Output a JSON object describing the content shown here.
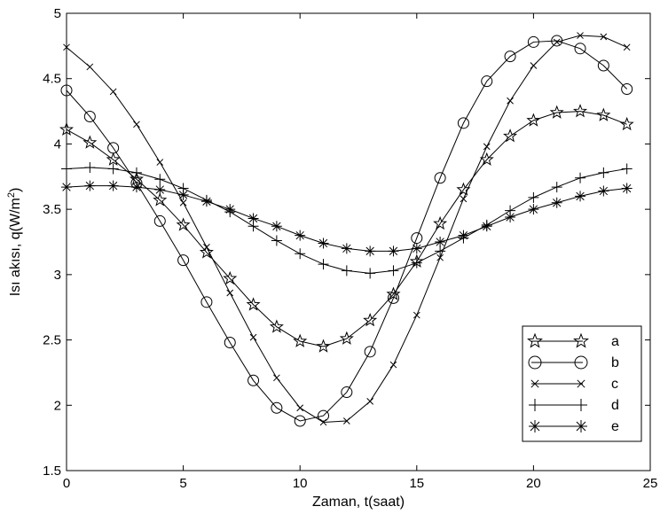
{
  "chart_data": {
    "type": "line",
    "xlabel": "Zaman, t(saat)",
    "ylabel": {
      "main": "Isı akısı, q(W/m",
      "sup": "2",
      "end": ")"
    },
    "xlim": [
      0,
      25
    ],
    "ylim": [
      1.5,
      5
    ],
    "xticks": [
      0,
      5,
      10,
      15,
      20,
      25
    ],
    "yticks": [
      1.5,
      2,
      2.5,
      3,
      3.5,
      4,
      4.5,
      5
    ],
    "grid": false,
    "legend_position": "bottom-right",
    "x": [
      0,
      1,
      2,
      3,
      4,
      5,
      6,
      7,
      8,
      9,
      10,
      11,
      12,
      13,
      14,
      15,
      16,
      17,
      18,
      19,
      20,
      21,
      22,
      23,
      24
    ],
    "series": [
      {
        "name": "a",
        "marker": "star-open",
        "color": "#000000",
        "values": [
          4.11,
          4.01,
          3.88,
          3.73,
          3.57,
          3.38,
          3.17,
          2.97,
          2.77,
          2.6,
          2.49,
          2.45,
          2.51,
          2.65,
          2.85,
          3.1,
          3.39,
          3.65,
          3.88,
          4.06,
          4.18,
          4.24,
          4.25,
          4.22,
          4.15
        ]
      },
      {
        "name": "b",
        "marker": "circle",
        "color": "#000000",
        "values": [
          4.41,
          4.21,
          3.97,
          3.7,
          3.41,
          3.11,
          2.79,
          2.48,
          2.19,
          1.98,
          1.88,
          1.92,
          2.1,
          2.41,
          2.82,
          3.28,
          3.74,
          4.16,
          4.48,
          4.67,
          4.78,
          4.79,
          4.73,
          4.6,
          4.42
        ]
      },
      {
        "name": "c",
        "marker": "x",
        "color": "#000000",
        "values": [
          4.74,
          4.59,
          4.4,
          4.15,
          3.86,
          3.55,
          3.21,
          2.86,
          2.52,
          2.21,
          1.98,
          1.87,
          1.88,
          2.03,
          2.31,
          2.69,
          3.13,
          3.58,
          3.98,
          4.33,
          4.6,
          4.78,
          4.83,
          4.82,
          4.74
        ]
      },
      {
        "name": "d",
        "marker": "plus",
        "color": "#000000",
        "values": [
          3.81,
          3.82,
          3.81,
          3.78,
          3.73,
          3.66,
          3.57,
          3.48,
          3.37,
          3.26,
          3.16,
          3.08,
          3.03,
          3.01,
          3.03,
          3.09,
          3.18,
          3.28,
          3.38,
          3.49,
          3.59,
          3.67,
          3.74,
          3.78,
          3.81
        ]
      },
      {
        "name": "e",
        "marker": "asterisk",
        "color": "#000000",
        "values": [
          3.67,
          3.68,
          3.68,
          3.67,
          3.65,
          3.61,
          3.56,
          3.5,
          3.43,
          3.37,
          3.3,
          3.24,
          3.2,
          3.18,
          3.18,
          3.2,
          3.25,
          3.3,
          3.37,
          3.44,
          3.5,
          3.55,
          3.6,
          3.64,
          3.66
        ]
      }
    ]
  }
}
